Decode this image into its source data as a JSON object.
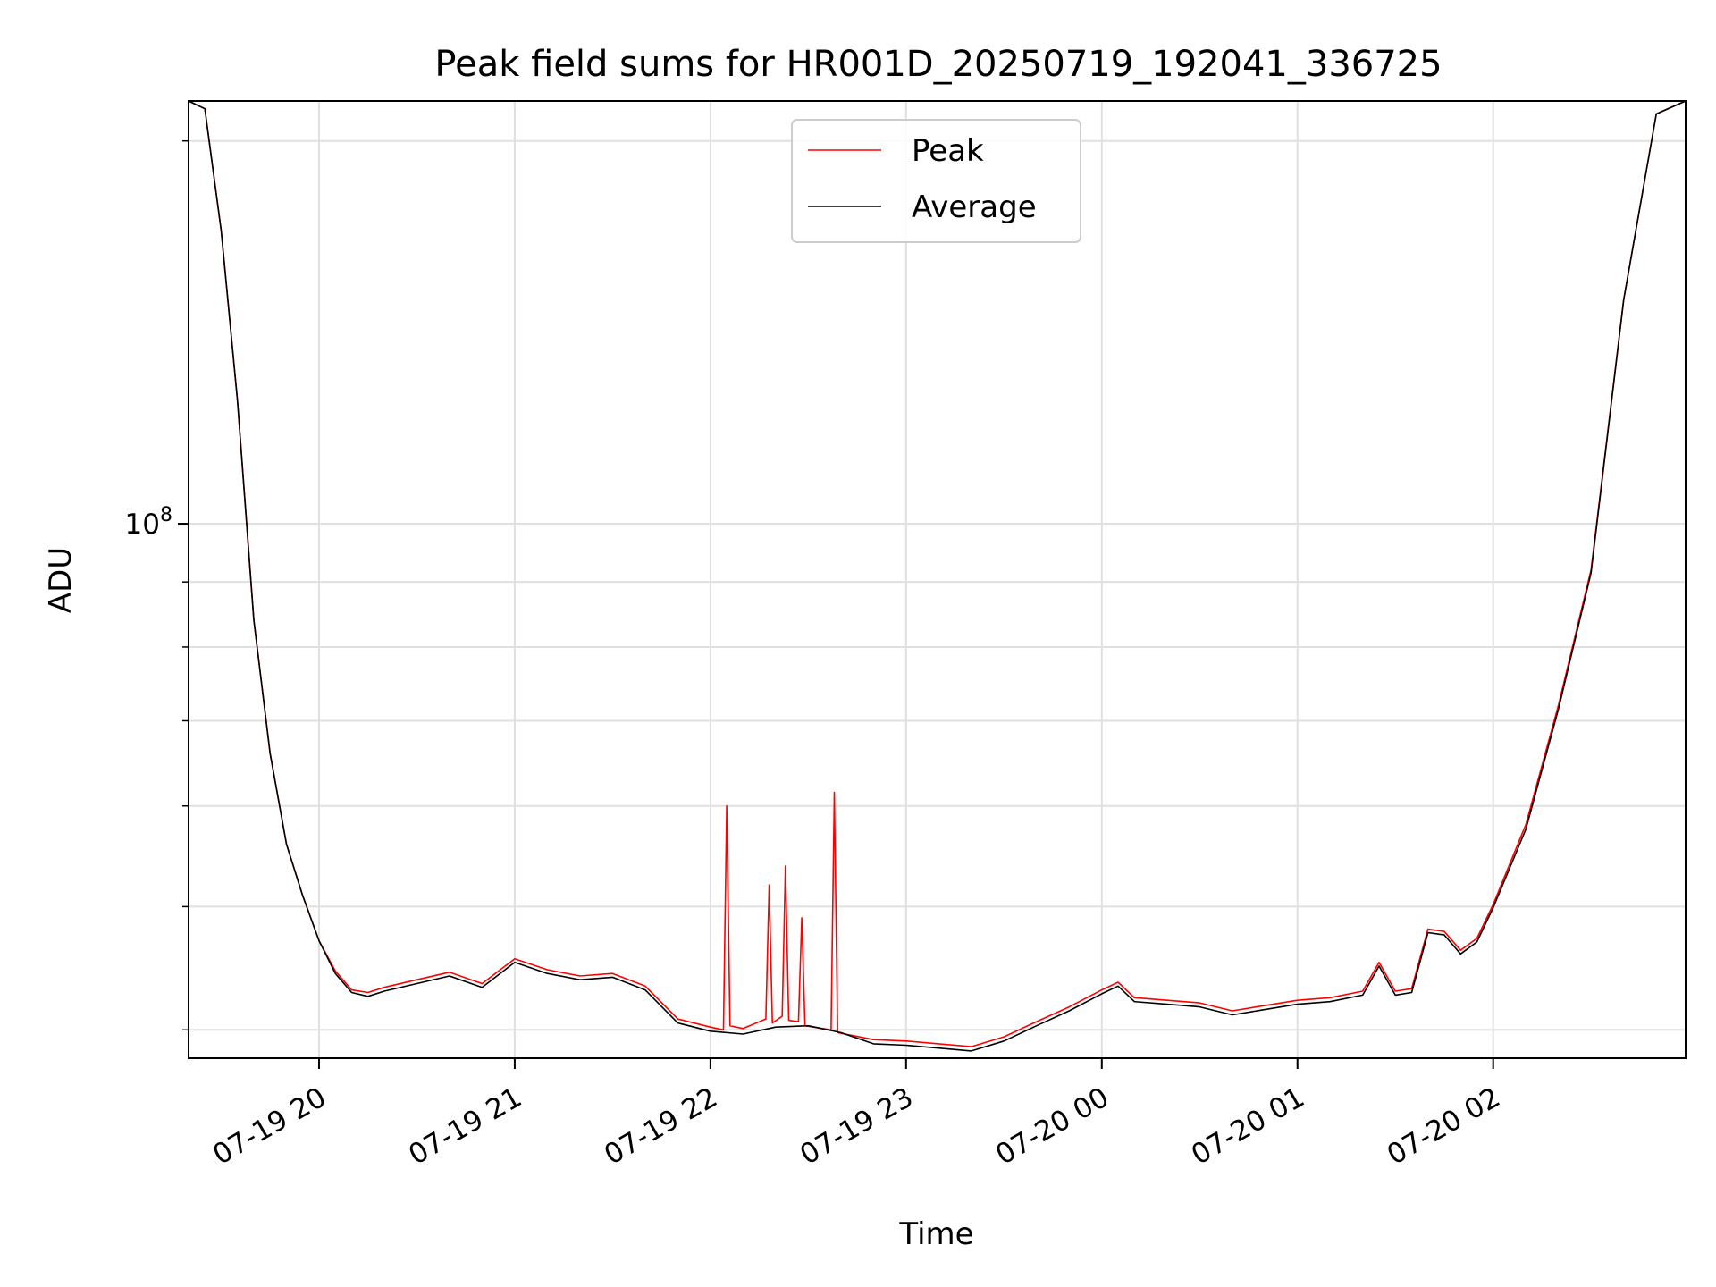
{
  "chart_data": {
    "type": "line",
    "title": "Peak field sums for HR001D_20250719_192041_336725",
    "xlabel": "Time",
    "ylabel": "ADU",
    "yscale": "log",
    "grid": true,
    "legend_position": "top-center",
    "xlim": [
      "07-19 19:20",
      "07-20 02:59"
    ],
    "ylim": [
      38000000,
      215000000
    ],
    "x_ticks": [
      {
        "value": "07-19 20:00",
        "label": "07-19 20"
      },
      {
        "value": "07-19 21:00",
        "label": "07-19 21"
      },
      {
        "value": "07-19 22:00",
        "label": "07-19 22"
      },
      {
        "value": "07-19 23:00",
        "label": "07-19 23"
      },
      {
        "value": "07-20 00:00",
        "label": "07-20 00"
      },
      {
        "value": "07-20 01:00",
        "label": "07-20 01"
      },
      {
        "value": "07-20 02:00",
        "label": "07-20 02"
      }
    ],
    "y_major_ticks": [
      {
        "value": 100000000,
        "label_base": "10",
        "label_exp": "8"
      }
    ],
    "y_minor_ticks": [
      40000000,
      50000000,
      60000000,
      70000000,
      80000000,
      90000000,
      200000000
    ],
    "series": [
      {
        "name": "Peak",
        "color": "#ff0000",
        "x": [
          "07-19 19:20",
          "07-19 19:25",
          "07-19 19:30",
          "07-19 19:35",
          "07-19 19:40",
          "07-19 19:45",
          "07-19 19:50",
          "07-19 19:55",
          "07-19 20:00",
          "07-19 20:05",
          "07-19 20:10",
          "07-19 20:15",
          "07-19 20:20",
          "07-19 20:30",
          "07-19 20:40",
          "07-19 20:50",
          "07-19 21:00",
          "07-19 21:10",
          "07-19 21:20",
          "07-19 21:30",
          "07-19 21:40",
          "07-19 21:50",
          "07-19 22:00",
          "07-19 22:04",
          "07-19 22:05",
          "07-19 22:06",
          "07-19 22:10",
          "07-19 22:17",
          "07-19 22:18",
          "07-19 22:19",
          "07-19 22:22",
          "07-19 22:23",
          "07-19 22:24",
          "07-19 22:27",
          "07-19 22:28",
          "07-19 22:29",
          "07-19 22:37",
          "07-19 22:38",
          "07-19 22:39",
          "07-19 22:50",
          "07-19 23:00",
          "07-19 23:10",
          "07-19 23:20",
          "07-19 23:30",
          "07-19 23:40",
          "07-19 23:50",
          "07-20 00:00",
          "07-20 00:05",
          "07-20 00:10",
          "07-20 00:20",
          "07-20 00:30",
          "07-20 00:40",
          "07-20 00:50",
          "07-20 01:00",
          "07-20 01:10",
          "07-20 01:20",
          "07-20 01:25",
          "07-20 01:30",
          "07-20 01:35",
          "07-20 01:40",
          "07-20 01:45",
          "07-20 01:50",
          "07-20 01:55",
          "07-20 02:00",
          "07-20 02:10",
          "07-20 02:20",
          "07-20 02:30",
          "07-20 02:40",
          "07-20 02:50",
          "07-20 02:59"
        ],
        "values": [
          215000000,
          212000000,
          170000000,
          125000000,
          84000000,
          66000000,
          56000000,
          51000000,
          47000000,
          44500000,
          43000000,
          42800000,
          43200000,
          43800000,
          44400000,
          43500000,
          45500000,
          44600000,
          44100000,
          44300000,
          43300000,
          40800000,
          40200000,
          40000000,
          60000000,
          40300000,
          40100000,
          40800000,
          52000000,
          40500000,
          41000000,
          53800000,
          40700000,
          40600000,
          49000000,
          40300000,
          40000000,
          61500000,
          39800000,
          39300000,
          39200000,
          39000000,
          38800000,
          39500000,
          40600000,
          41700000,
          43000000,
          43600000,
          42400000,
          42200000,
          42000000,
          41400000,
          41800000,
          42200000,
          42400000,
          42900000,
          45200000,
          42900000,
          43100000,
          48000000,
          47800000,
          46200000,
          47200000,
          50200000,
          58000000,
          72000000,
          92000000,
          150000000,
          210000000,
          215000000
        ]
      },
      {
        "name": "Average",
        "color": "#000000",
        "x": [
          "07-19 19:20",
          "07-19 19:25",
          "07-19 19:30",
          "07-19 19:35",
          "07-19 19:40",
          "07-19 19:45",
          "07-19 19:50",
          "07-19 19:55",
          "07-19 20:00",
          "07-19 20:05",
          "07-19 20:10",
          "07-19 20:15",
          "07-19 20:20",
          "07-19 20:30",
          "07-19 20:40",
          "07-19 20:50",
          "07-19 21:00",
          "07-19 21:10",
          "07-19 21:20",
          "07-19 21:30",
          "07-19 21:40",
          "07-19 21:50",
          "07-19 22:00",
          "07-19 22:10",
          "07-19 22:20",
          "07-19 22:30",
          "07-19 22:40",
          "07-19 22:50",
          "07-19 23:00",
          "07-19 23:10",
          "07-19 23:20",
          "07-19 23:30",
          "07-19 23:40",
          "07-19 23:50",
          "07-20 00:00",
          "07-20 00:05",
          "07-20 00:10",
          "07-20 00:20",
          "07-20 00:30",
          "07-20 00:40",
          "07-20 00:50",
          "07-20 01:00",
          "07-20 01:10",
          "07-20 01:20",
          "07-20 01:25",
          "07-20 01:30",
          "07-20 01:35",
          "07-20 01:40",
          "07-20 01:45",
          "07-20 01:50",
          "07-20 01:55",
          "07-20 02:00",
          "07-20 02:10",
          "07-20 02:20",
          "07-20 02:30",
          "07-20 02:40",
          "07-20 02:50",
          "07-20 02:59"
        ],
        "values": [
          215000000,
          212000000,
          170000000,
          125000000,
          84000000,
          66000000,
          56000000,
          51000000,
          47000000,
          44300000,
          42800000,
          42500000,
          42900000,
          43500000,
          44100000,
          43200000,
          45200000,
          44300000,
          43800000,
          44000000,
          43000000,
          40500000,
          39900000,
          39700000,
          40200000,
          40300000,
          39800000,
          39000000,
          38900000,
          38700000,
          38500000,
          39200000,
          40300000,
          41400000,
          42700000,
          43300000,
          42100000,
          41900000,
          41700000,
          41100000,
          41500000,
          41900000,
          42100000,
          42600000,
          44900000,
          42600000,
          42800000,
          47700000,
          47500000,
          45900000,
          46900000,
          49900000,
          57500000,
          71500000,
          91500000,
          150000000,
          210000000,
          215000000
        ]
      }
    ]
  }
}
